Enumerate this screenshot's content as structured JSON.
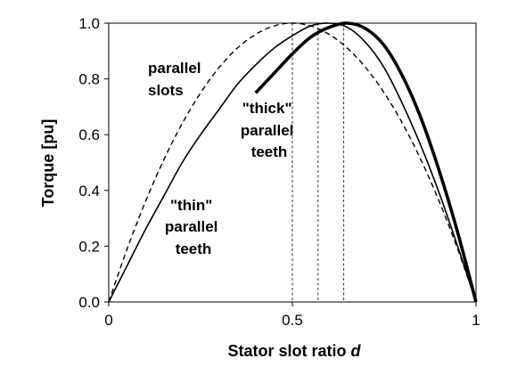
{
  "chart_data": {
    "type": "line",
    "title": "",
    "xlabel": "Stator slot ratio ",
    "xlabel_var": "d",
    "ylabel": "Torque [pu]",
    "xlim": [
      0,
      1
    ],
    "ylim": [
      0,
      1.0
    ],
    "xticks": [
      {
        "value": 0,
        "label": "0"
      },
      {
        "value": 0.5,
        "label": "0.5"
      },
      {
        "value": 1,
        "label": "1"
      }
    ],
    "yticks": [
      {
        "value": 0,
        "label": "0.0"
      },
      {
        "value": 0.2,
        "label": "0.2"
      },
      {
        "value": 0.4,
        "label": "0.4"
      },
      {
        "value": 0.6,
        "label": "0.6"
      },
      {
        "value": 0.8,
        "label": "0.8"
      },
      {
        "value": 1.0,
        "label": "1.0"
      }
    ],
    "grid": false,
    "legend": "none",
    "series": [
      {
        "style": "dashed",
        "color": "#000000",
        "x": [
          0,
          0.05,
          0.1,
          0.15,
          0.2,
          0.25,
          0.3,
          0.35,
          0.4,
          0.45,
          0.5,
          0.55,
          0.6,
          0.65,
          0.7,
          0.75,
          0.8,
          0.85,
          0.9,
          0.95,
          1.0
        ],
        "y": [
          0,
          0.19,
          0.36,
          0.51,
          0.64,
          0.75,
          0.84,
          0.91,
          0.96,
          0.99,
          1.0,
          0.99,
          0.96,
          0.91,
          0.84,
          0.75,
          0.64,
          0.51,
          0.36,
          0.19,
          0
        ]
      },
      {
        "style": "solid-thin",
        "color": "#000000",
        "x": [
          0,
          0.05,
          0.1,
          0.15,
          0.2,
          0.25,
          0.3,
          0.35,
          0.4,
          0.45,
          0.5,
          0.55,
          0.6,
          0.65,
          0.7,
          0.75,
          0.8,
          0.85,
          0.9,
          0.95,
          1.0
        ],
        "y": [
          0,
          0.13,
          0.26,
          0.38,
          0.5,
          0.6,
          0.69,
          0.78,
          0.85,
          0.91,
          0.955,
          0.99,
          1.0,
          0.985,
          0.93,
          0.84,
          0.71,
          0.56,
          0.39,
          0.2,
          0
        ]
      },
      {
        "style": "solid-thick",
        "color": "#000000",
        "x": [
          0.4,
          0.45,
          0.5,
          0.55,
          0.6,
          0.65,
          0.7,
          0.75,
          0.8,
          0.85,
          0.9,
          0.95,
          1.0
        ],
        "y": [
          0.75,
          0.82,
          0.89,
          0.95,
          0.985,
          1.0,
          0.98,
          0.92,
          0.81,
          0.66,
          0.47,
          0.25,
          0
        ]
      }
    ],
    "reference_lines": [
      {
        "x": 0.5,
        "style": "dashed-thin"
      },
      {
        "x": 0.57,
        "style": "dashed-thin"
      },
      {
        "x": 0.64,
        "style": "dashed-thin"
      }
    ],
    "annotations": [
      {
        "lines": [
          "parallel",
          "slots"
        ]
      },
      {
        "lines": [
          "\"thick\"",
          "parallel",
          "teeth"
        ]
      },
      {
        "lines": [
          "\"thin\"",
          "parallel",
          "teeth"
        ]
      }
    ]
  }
}
